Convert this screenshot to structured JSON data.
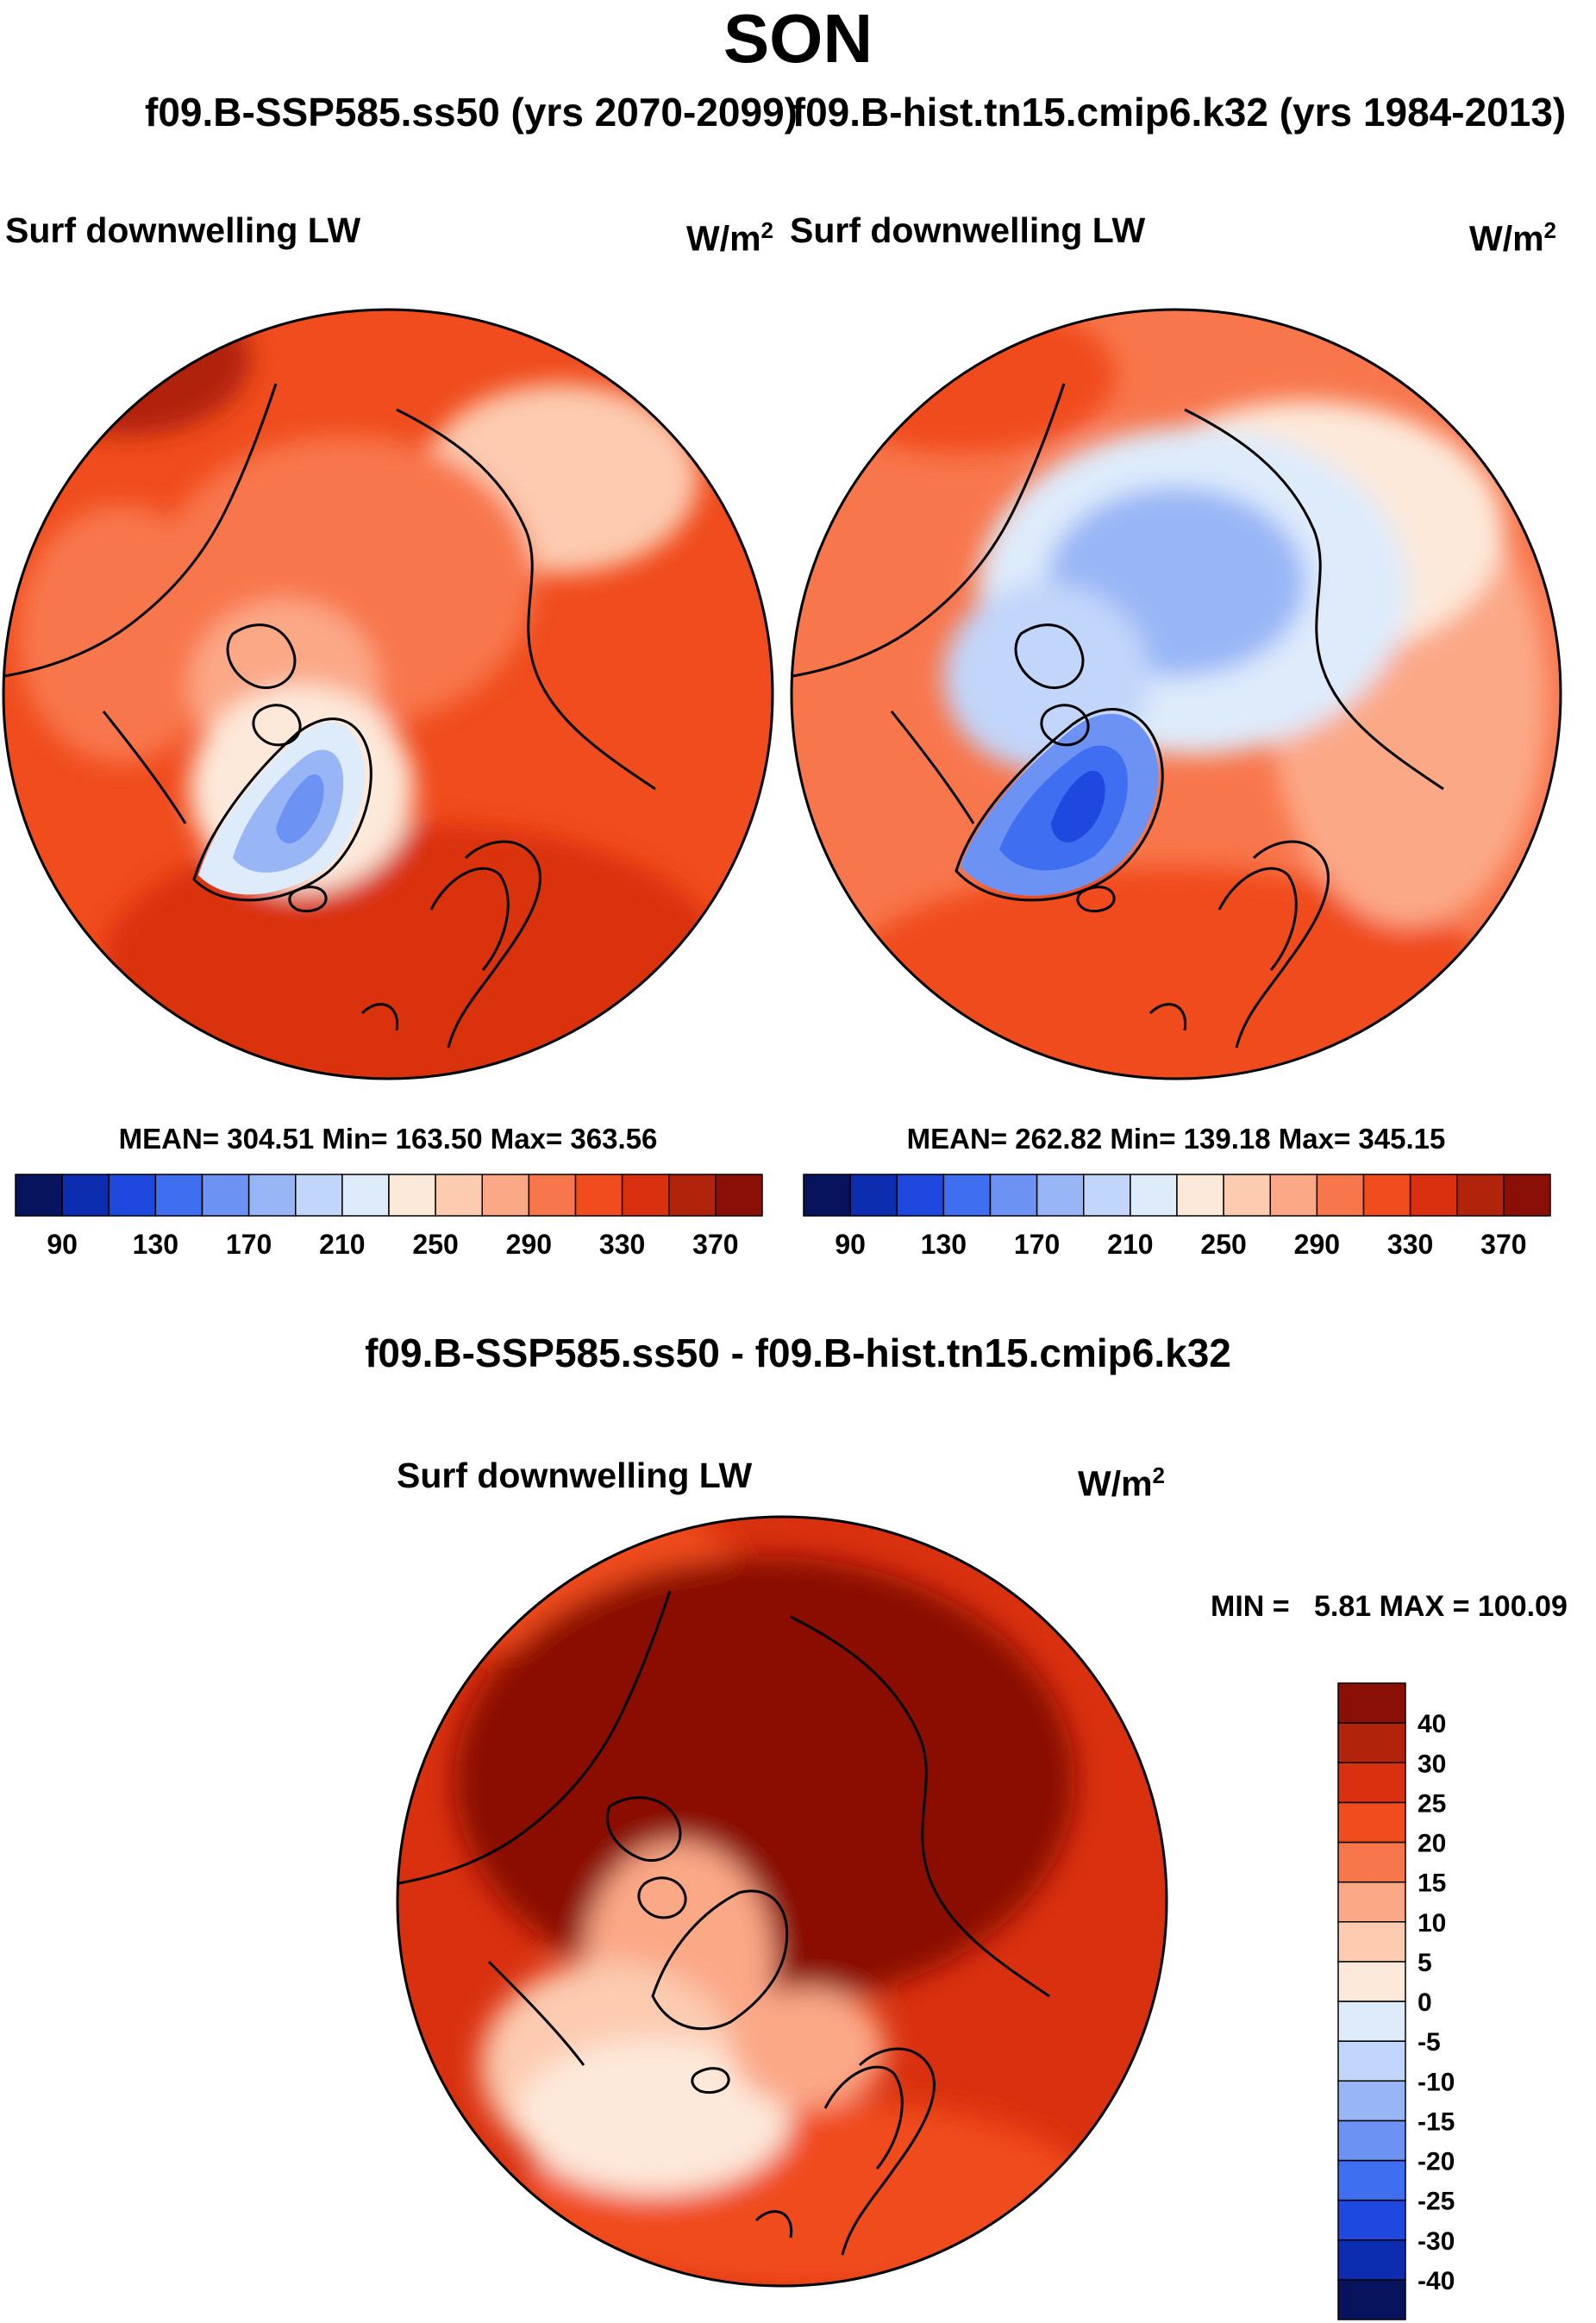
{
  "title": "SON",
  "subtitle_left": "f09.B-SSP585.ss50 (yrs 2070-2099)",
  "subtitle_right": "f09.B-hist.tn15.cmip6.k32 (yrs 1984-2013)",
  "panels": [
    {
      "variable": "Surf downwelling LW",
      "units": "W/m",
      "units_sup": "2",
      "stats": {
        "mean_label": "MEAN=",
        "mean": "304.51",
        "min_label": "Min=",
        "min": "163.50",
        "max_label": "Max=",
        "max": "363.56"
      }
    },
    {
      "variable": "Surf downwelling LW",
      "units": "W/m",
      "units_sup": "2",
      "stats": {
        "mean_label": "MEAN=",
        "mean": "262.82",
        "min_label": "Min=",
        "min": "139.18",
        "max_label": "Max=",
        "max": "345.15"
      }
    }
  ],
  "diff": {
    "title": "f09.B-SSP585.ss50 - f09.B-hist.tn15.cmip6.k32",
    "variable": "Surf downwelling LW",
    "units": "W/m",
    "units_sup": "2",
    "minmax_text": "MIN =   5.81 MAX = 100.09"
  },
  "chart_data": [
    {
      "type": "heatmap",
      "projection": "north-polar-stereographic",
      "title": "f09.B-SSP585.ss50 (yrs 2070-2099)",
      "variable": "Surf downwelling LW",
      "units": "W/m2",
      "mean": 304.51,
      "min": 163.5,
      "max": 363.56,
      "colorbar": {
        "levels": [
          90,
          110,
          130,
          150,
          170,
          190,
          210,
          230,
          250,
          270,
          290,
          310,
          330,
          350,
          370
        ],
        "tick_labels": [
          "90",
          "130",
          "170",
          "210",
          "250",
          "290",
          "330",
          "370"
        ],
        "colors": [
          "#08135e",
          "#0c2db0",
          "#1f49de",
          "#3f6ff0",
          "#6c93f3",
          "#98b5f6",
          "#c2d5fa",
          "#deebfb",
          "#fde9da",
          "#fccbb0",
          "#fba887",
          "#f8764c",
          "#f04c1d",
          "#d9310f",
          "#b1230b",
          "#8a0f06"
        ]
      }
    },
    {
      "type": "heatmap",
      "projection": "north-polar-stereographic",
      "title": "f09.B-hist.tn15.cmip6.k32 (yrs 1984-2013)",
      "variable": "Surf downwelling LW",
      "units": "W/m2",
      "mean": 262.82,
      "min": 139.18,
      "max": 345.15,
      "colorbar": {
        "levels": [
          90,
          110,
          130,
          150,
          170,
          190,
          210,
          230,
          250,
          270,
          290,
          310,
          330,
          350,
          370
        ],
        "tick_labels": [
          "90",
          "130",
          "170",
          "210",
          "250",
          "290",
          "330",
          "370"
        ],
        "colors": [
          "#08135e",
          "#0c2db0",
          "#1f49de",
          "#3f6ff0",
          "#6c93f3",
          "#98b5f6",
          "#c2d5fa",
          "#deebfb",
          "#fde9da",
          "#fccbb0",
          "#fba887",
          "#f8764c",
          "#f04c1d",
          "#d9310f",
          "#b1230b",
          "#8a0f06"
        ]
      }
    },
    {
      "type": "heatmap",
      "projection": "north-polar-stereographic",
      "title": "f09.B-SSP585.ss50 - f09.B-hist.tn15.cmip6.k32",
      "variable": "Surf downwelling LW",
      "units": "W/m2",
      "min": 5.81,
      "max": 100.09,
      "colorbar": {
        "levels": [
          -40,
          -30,
          -25,
          -20,
          -15,
          -10,
          -5,
          0,
          5,
          10,
          15,
          20,
          25,
          30,
          40
        ],
        "tick_labels": [
          "-40",
          "-30",
          "-25",
          "-20",
          "-15",
          "-10",
          "-5",
          "0",
          "5",
          "10",
          "15",
          "20",
          "25",
          "30",
          "40"
        ],
        "colors": [
          "#08135e",
          "#0c2db0",
          "#1f49de",
          "#3f6ff0",
          "#6c93f3",
          "#98b5f6",
          "#c2d5fa",
          "#deebfb",
          "#fde9da",
          "#fccbb0",
          "#fba887",
          "#f8764c",
          "#f04c1d",
          "#d9310f",
          "#b1230b",
          "#8a0f06"
        ]
      }
    }
  ]
}
